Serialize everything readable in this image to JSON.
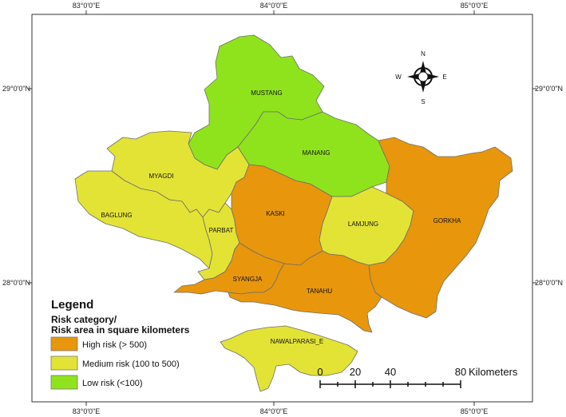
{
  "graticule": {
    "top": [
      "83°0'0\"E",
      "84°0'0\"E",
      "85°0'0\"E"
    ],
    "bottom": [
      "83°0'0\"E",
      "84°0'0\"E",
      "85°0'0\"E"
    ],
    "left": [
      "29°0'0\"N",
      "28°0'0\"N"
    ],
    "right": [
      "29°0'0\"N",
      "28°0'0\"N"
    ]
  },
  "colors": {
    "high": "#e8960c",
    "medium": "#e3e336",
    "low": "#8fe31c",
    "border": "#6e6e6e"
  },
  "districts": [
    {
      "name": "MUSTANG",
      "risk": "low"
    },
    {
      "name": "MANANG",
      "risk": "low"
    },
    {
      "name": "MYAGDI",
      "risk": "medium"
    },
    {
      "name": "BAGLUNG",
      "risk": "medium"
    },
    {
      "name": "PARBAT",
      "risk": "medium"
    },
    {
      "name": "KASKI",
      "risk": "high"
    },
    {
      "name": "LAMJUNG",
      "risk": "medium"
    },
    {
      "name": "GORKHA",
      "risk": "high"
    },
    {
      "name": "SYANGJA",
      "risk": "high"
    },
    {
      "name": "TANAHU",
      "risk": "high"
    },
    {
      "name": "NAWALPARASI_E",
      "risk": "medium"
    }
  ],
  "legend": {
    "title": "Legend",
    "subtitle_line1": "Risk category/",
    "subtitle_line2": "Risk area in square kilometers",
    "items": [
      {
        "label": "High risk (> 500)",
        "risk": "high"
      },
      {
        "label": "Medium risk (100 to 500)",
        "risk": "medium"
      },
      {
        "label": "Low risk (<100)",
        "risk": "low"
      }
    ]
  },
  "compass": {
    "n": "N",
    "s": "S",
    "e": "E",
    "w": "W"
  },
  "scale_bar": {
    "labels": [
      "0",
      "20",
      "40",
      "80"
    ],
    "unit": "Kilometers"
  }
}
